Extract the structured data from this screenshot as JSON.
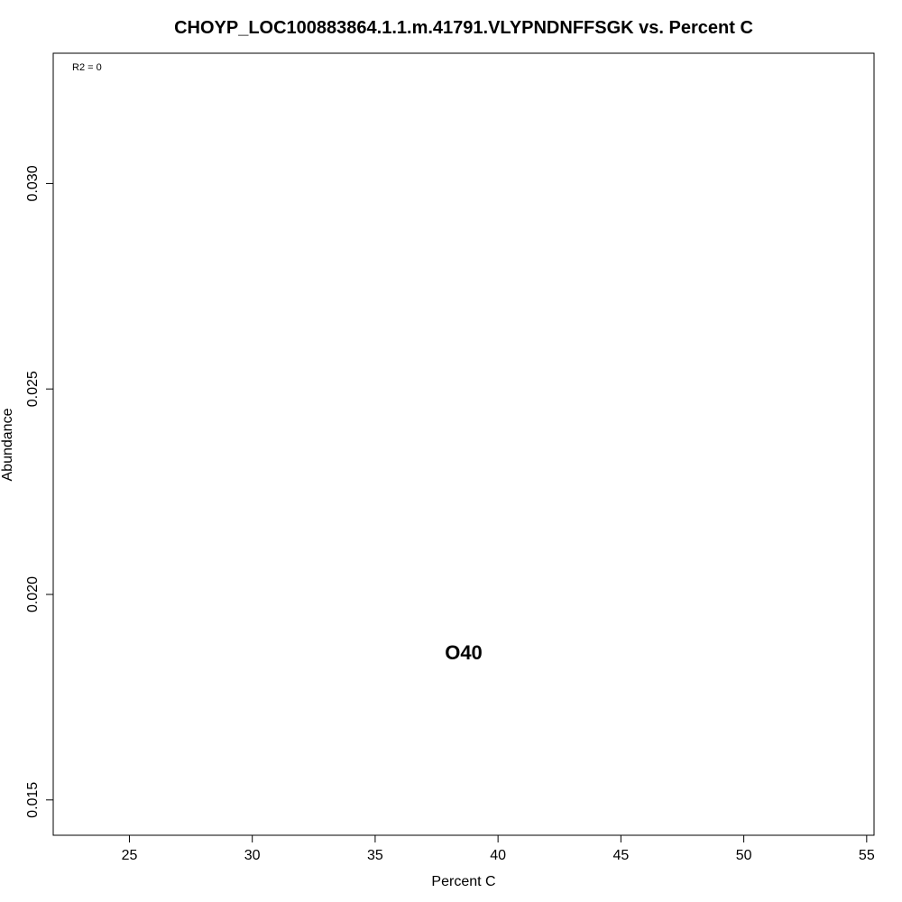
{
  "chart_data": {
    "type": "scatter",
    "title": "CHOYP_LOC100883864.1.1.m.41791.VLYPNDNFFSGK vs. Percent C",
    "xlabel": "Percent C",
    "ylabel": "Abundance",
    "xlim": [
      21.9,
      55.3
    ],
    "ylim": [
      0.01414,
      0.03317
    ],
    "x_ticks": [
      25,
      30,
      35,
      40,
      45,
      50,
      55
    ],
    "y_ticks": [
      0.015,
      0.02,
      0.025,
      0.03
    ],
    "y_tick_labels": [
      "0.015",
      "0.020",
      "0.025",
      "0.030"
    ],
    "annotation": "R2 = 0",
    "points": [
      {
        "label": "O40",
        "x": 38.6,
        "y": 0.0186
      }
    ],
    "grid": false,
    "legend": "none"
  }
}
